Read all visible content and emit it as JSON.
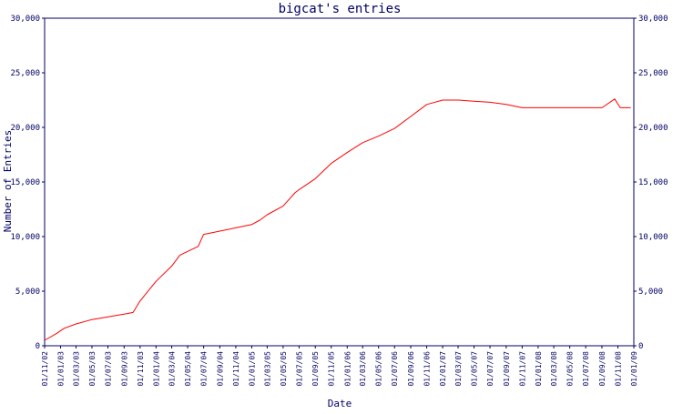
{
  "colors": {
    "axis": "#000066",
    "text": "#000066",
    "series": "#ff0000",
    "background": "#ffffff"
  },
  "chart_data": {
    "type": "line",
    "title": "bigcat's entries",
    "xlabel": "Date",
    "ylabel": "Number of Entries",
    "ylim": [
      0,
      30000
    ],
    "xlim": [
      "2002-11-01",
      "2009-01-01"
    ],
    "grid": false,
    "legend": "none",
    "y_ticks": [
      {
        "value": 0,
        "label": "0"
      },
      {
        "value": 5000,
        "label": "5,000"
      },
      {
        "value": 10000,
        "label": "10,000"
      },
      {
        "value": 15000,
        "label": "15,000"
      },
      {
        "value": 20000,
        "label": "20,000"
      },
      {
        "value": 25000,
        "label": "25,000"
      },
      {
        "value": 30000,
        "label": "30,000"
      }
    ],
    "x_ticks": [
      {
        "date": "2002-11-01",
        "label": "01/11/02"
      },
      {
        "date": "2003-01-01",
        "label": "01/01/03"
      },
      {
        "date": "2003-03-01",
        "label": "01/03/03"
      },
      {
        "date": "2003-05-01",
        "label": "01/05/03"
      },
      {
        "date": "2003-07-01",
        "label": "01/07/03"
      },
      {
        "date": "2003-09-01",
        "label": "01/09/03"
      },
      {
        "date": "2003-11-01",
        "label": "01/11/03"
      },
      {
        "date": "2004-01-01",
        "label": "01/01/04"
      },
      {
        "date": "2004-03-01",
        "label": "01/03/04"
      },
      {
        "date": "2004-05-01",
        "label": "01/05/04"
      },
      {
        "date": "2004-07-01",
        "label": "01/07/04"
      },
      {
        "date": "2004-09-01",
        "label": "01/09/04"
      },
      {
        "date": "2004-11-01",
        "label": "01/11/04"
      },
      {
        "date": "2005-01-01",
        "label": "01/01/05"
      },
      {
        "date": "2005-03-01",
        "label": "01/03/05"
      },
      {
        "date": "2005-05-01",
        "label": "01/05/05"
      },
      {
        "date": "2005-07-01",
        "label": "01/07/05"
      },
      {
        "date": "2005-09-01",
        "label": "01/09/05"
      },
      {
        "date": "2005-11-01",
        "label": "01/11/05"
      },
      {
        "date": "2006-01-01",
        "label": "01/01/06"
      },
      {
        "date": "2006-03-01",
        "label": "01/03/06"
      },
      {
        "date": "2006-05-01",
        "label": "01/05/06"
      },
      {
        "date": "2006-07-01",
        "label": "01/07/06"
      },
      {
        "date": "2006-09-01",
        "label": "01/09/06"
      },
      {
        "date": "2006-11-01",
        "label": "01/11/06"
      },
      {
        "date": "2007-01-01",
        "label": "01/01/07"
      },
      {
        "date": "2007-03-01",
        "label": "01/03/07"
      },
      {
        "date": "2007-05-01",
        "label": "01/05/07"
      },
      {
        "date": "2007-07-01",
        "label": "01/07/07"
      },
      {
        "date": "2007-09-01",
        "label": "01/09/07"
      },
      {
        "date": "2007-11-01",
        "label": "01/11/07"
      },
      {
        "date": "2008-01-01",
        "label": "01/01/08"
      },
      {
        "date": "2008-03-01",
        "label": "01/03/08"
      },
      {
        "date": "2008-05-01",
        "label": "01/05/08"
      },
      {
        "date": "2008-07-01",
        "label": "01/07/08"
      },
      {
        "date": "2008-09-01",
        "label": "01/09/08"
      },
      {
        "date": "2008-11-01",
        "label": "01/11/08"
      },
      {
        "date": "2009-01-01",
        "label": "01/01/09"
      }
    ],
    "series": [
      {
        "color": "#ff0000",
        "points": [
          {
            "x": "2002-11-01",
            "y": 500
          },
          {
            "x": "2002-12-15",
            "y": 1100
          },
          {
            "x": "2003-01-15",
            "y": 1600
          },
          {
            "x": "2003-03-01",
            "y": 2000
          },
          {
            "x": "2003-05-01",
            "y": 2400
          },
          {
            "x": "2003-07-01",
            "y": 2650
          },
          {
            "x": "2003-09-01",
            "y": 2900
          },
          {
            "x": "2003-10-05",
            "y": 3050
          },
          {
            "x": "2003-11-01",
            "y": 4100
          },
          {
            "x": "2004-01-01",
            "y": 5900
          },
          {
            "x": "2004-03-01",
            "y": 7300
          },
          {
            "x": "2004-04-01",
            "y": 8300
          },
          {
            "x": "2004-06-10",
            "y": 9100
          },
          {
            "x": "2004-07-01",
            "y": 10200
          },
          {
            "x": "2004-09-01",
            "y": 10500
          },
          {
            "x": "2004-11-01",
            "y": 10800
          },
          {
            "x": "2005-01-01",
            "y": 11100
          },
          {
            "x": "2005-02-01",
            "y": 11500
          },
          {
            "x": "2005-03-01",
            "y": 12000
          },
          {
            "x": "2005-05-01",
            "y": 12800
          },
          {
            "x": "2005-06-15",
            "y": 14000
          },
          {
            "x": "2005-07-01",
            "y": 14300
          },
          {
            "x": "2005-09-01",
            "y": 15300
          },
          {
            "x": "2005-11-01",
            "y": 16700
          },
          {
            "x": "2006-01-01",
            "y": 17700
          },
          {
            "x": "2006-03-01",
            "y": 18600
          },
          {
            "x": "2006-05-01",
            "y": 19200
          },
          {
            "x": "2006-07-01",
            "y": 19900
          },
          {
            "x": "2006-09-01",
            "y": 21000
          },
          {
            "x": "2006-11-01",
            "y": 22100
          },
          {
            "x": "2007-01-01",
            "y": 22500
          },
          {
            "x": "2007-03-01",
            "y": 22500
          },
          {
            "x": "2007-05-01",
            "y": 22400
          },
          {
            "x": "2007-07-01",
            "y": 22300
          },
          {
            "x": "2007-09-01",
            "y": 22100
          },
          {
            "x": "2007-11-01",
            "y": 21800
          },
          {
            "x": "2008-01-01",
            "y": 21800
          },
          {
            "x": "2008-05-01",
            "y": 21800
          },
          {
            "x": "2008-09-01",
            "y": 21800
          },
          {
            "x": "2008-10-20",
            "y": 22600
          },
          {
            "x": "2008-11-10",
            "y": 21800
          },
          {
            "x": "2008-12-20",
            "y": 21800
          }
        ]
      }
    ]
  }
}
